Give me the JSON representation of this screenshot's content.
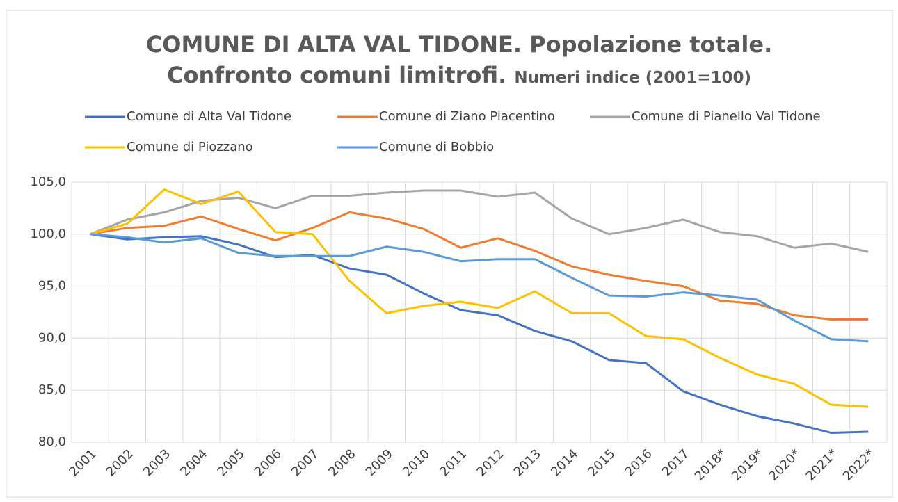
{
  "chart_data": {
    "type": "line",
    "title": "COMUNE DI ALTA VAL TIDONE. Popolazione totale. Confronto comuni limitrofi.",
    "subtitle": "Numeri indice (2001=100)",
    "categories": [
      "2001",
      "2002",
      "2003",
      "2004",
      "2005",
      "2006",
      "2007",
      "2008",
      "2009",
      "2010",
      "2011",
      "2012",
      "2013",
      "2014",
      "2015",
      "2016",
      "2017",
      "2018*",
      "2019*",
      "2020*",
      "2021*",
      "2022*"
    ],
    "series": [
      {
        "name": "Comune di Alta Val Tidone",
        "color": "#4472c4",
        "values": [
          100,
          99.5,
          99.7,
          99.8,
          99.0,
          97.8,
          98.0,
          96.7,
          96.1,
          94.3,
          92.7,
          92.2,
          90.7,
          89.7,
          87.9,
          87.6,
          84.9,
          83.6,
          82.5,
          81.8,
          80.9,
          81.0
        ]
      },
      {
        "name": "Comune di Ziano Piacentino",
        "color": "#ed7d31",
        "values": [
          100,
          100.6,
          100.8,
          101.7,
          100.5,
          99.4,
          100.6,
          102.1,
          101.5,
          100.5,
          98.7,
          99.6,
          98.4,
          96.9,
          96.1,
          95.5,
          95.0,
          93.6,
          93.3,
          92.2,
          91.8,
          91.8
        ]
      },
      {
        "name": "Comune di Pianello Val Tidone",
        "color": "#a5a5a5",
        "values": [
          100,
          101.4,
          102.1,
          103.2,
          103.5,
          102.5,
          103.7,
          103.7,
          104.0,
          104.2,
          104.2,
          103.6,
          104.0,
          101.5,
          100.0,
          100.6,
          101.4,
          100.2,
          99.8,
          98.7,
          99.1,
          98.3
        ]
      },
      {
        "name": "Comune di Piozzano",
        "color": "#ffc000",
        "values": [
          100,
          101.0,
          104.3,
          102.9,
          104.1,
          100.2,
          100.0,
          95.5,
          92.4,
          93.1,
          93.5,
          92.9,
          94.5,
          92.4,
          92.4,
          90.2,
          89.9,
          88.1,
          86.5,
          85.6,
          83.6,
          83.4
        ]
      },
      {
        "name": "Comune di Bobbio",
        "color": "#5b9bd5",
        "values": [
          100,
          99.7,
          99.2,
          99.6,
          98.2,
          97.9,
          97.9,
          97.9,
          98.8,
          98.3,
          97.4,
          97.6,
          97.6,
          95.8,
          94.1,
          94.0,
          94.4,
          94.1,
          93.7,
          91.7,
          89.9,
          89.7
        ]
      }
    ],
    "ylim": [
      80,
      105
    ],
    "yticks": [
      {
        "value": 80,
        "label": "80,0"
      },
      {
        "value": 85,
        "label": "85,0"
      },
      {
        "value": 90,
        "label": "90,0"
      },
      {
        "value": 95,
        "label": "95,0"
      },
      {
        "value": 100,
        "label": "100,0"
      },
      {
        "value": 105,
        "label": "105,0"
      }
    ],
    "grid": true,
    "legend": "top"
  }
}
